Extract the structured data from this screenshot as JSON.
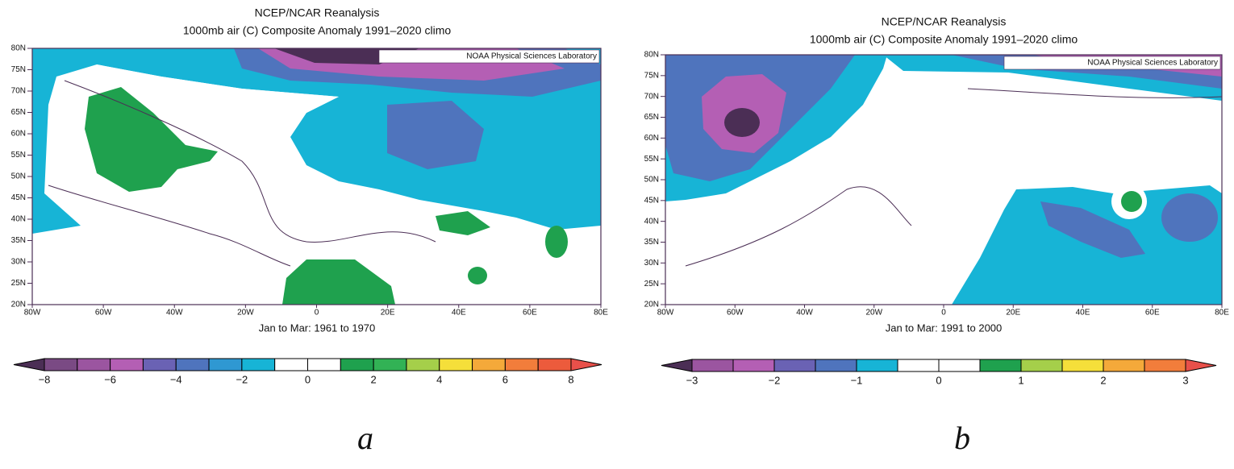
{
  "panels": [
    {
      "title": "NCEP/NCAR Reanalysis",
      "subtitle": "1000mb air (C) Composite Anomaly 1991–2020 climo",
      "credit": "NOAA Physical Sciences Laboratory",
      "lat_ticks": [
        "80N",
        "75N",
        "70N",
        "65N",
        "60N",
        "55N",
        "50N",
        "45N",
        "40N",
        "35N",
        "30N",
        "25N",
        "20N"
      ],
      "lon_ticks": [
        "80W",
        "60W",
        "40W",
        "20W",
        "0",
        "20E",
        "40E",
        "60E",
        "80E"
      ],
      "period": "Jan to Mar: 1961 to 1970",
      "colorbar": {
        "ticks": [
          "−8",
          "−6",
          "−4",
          "−2",
          "0",
          "2",
          "4",
          "6",
          "8"
        ],
        "under": "#4b2e55",
        "over": "#e8504a",
        "colors": [
          "#7a4a84",
          "#9b55a0",
          "#b45fb4",
          "#6a62b4",
          "#4f74bd",
          "#2f98d2",
          "#17b4d6",
          "#ffffff",
          "#ffffff",
          "#1fa14e",
          "#32b255",
          "#a5cf4a",
          "#f5df3a",
          "#f4a93a",
          "#f27d3b",
          "#ec5b3c"
        ]
      },
      "letter": "a"
    },
    {
      "title": "NCEP/NCAR Reanalysis",
      "subtitle": "1000mb air (C) Composite Anomaly 1991–2020 climo",
      "credit": "NOAA Physical Sciences Laboratory",
      "lat_ticks": [
        "80N",
        "75N",
        "70N",
        "65N",
        "60N",
        "55N",
        "50N",
        "45N",
        "40N",
        "35N",
        "30N",
        "25N",
        "20N"
      ],
      "lon_ticks": [
        "80W",
        "60W",
        "40W",
        "20W",
        "0",
        "20E",
        "40E",
        "60E",
        "80E"
      ],
      "period": "Jan to Mar: 1991 to 2000",
      "colorbar": {
        "ticks": [
          "−3",
          "−2",
          "−1",
          "0",
          "1",
          "2",
          "3"
        ],
        "under": "#4b2e55",
        "over": "#e8504a",
        "colors": [
          "#9b55a0",
          "#b45fb4",
          "#6a62b4",
          "#4f74bd",
          "#17b4d6",
          "#ffffff",
          "#ffffff",
          "#1fa14e",
          "#a5cf4a",
          "#f5df3a",
          "#f4a93a",
          "#f27d3b"
        ]
      },
      "letter": "b"
    }
  ]
}
